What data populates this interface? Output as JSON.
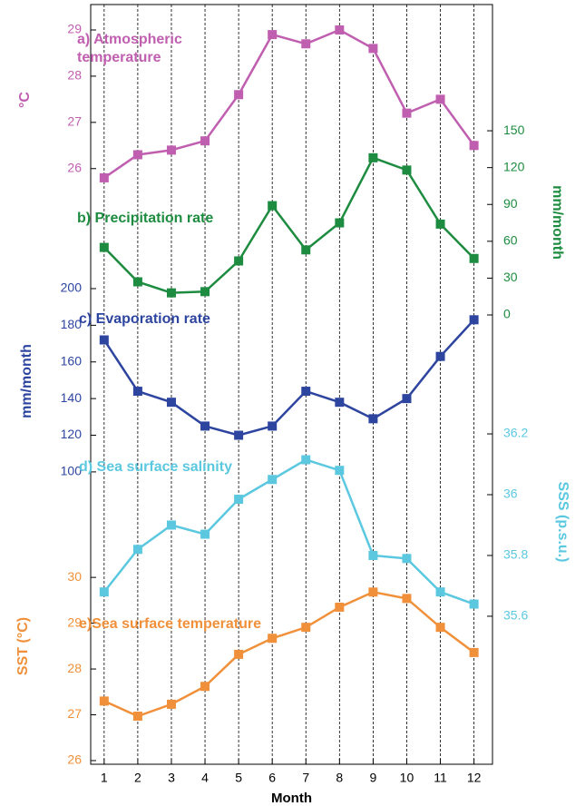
{
  "chart_data": [
    {
      "type": "line",
      "title": "a)  Atmospheric temperature",
      "ylabel": "°C",
      "axis": "y",
      "color": "#c05fb0",
      "x": [
        1,
        2,
        3,
        4,
        5,
        6,
        7,
        8,
        9,
        10,
        11,
        12
      ],
      "values": [
        25.8,
        26.3,
        26.4,
        26.6,
        27.6,
        28.9,
        28.7,
        29.0,
        28.6,
        27.2,
        27.5,
        26.5
      ],
      "ylim": [
        25.72,
        29.55
      ],
      "yticks": [
        26,
        27,
        28,
        29
      ]
    },
    {
      "type": "line",
      "title": "b) Precipitation rate",
      "ylabel": "mm/month",
      "axis": "y2",
      "color": "#1e8c40",
      "x": [
        1,
        2,
        3,
        4,
        5,
        6,
        7,
        8,
        9,
        10,
        11,
        12
      ],
      "values": [
        55,
        27,
        18,
        19,
        44,
        89,
        53,
        75,
        128,
        118,
        74,
        46
      ],
      "ylim": [
        -9.6,
        160.4
      ],
      "yticks": [
        0,
        30,
        60,
        90,
        120,
        150
      ]
    },
    {
      "type": "line",
      "title": "c) Evaporation rate",
      "ylabel": "mm/month",
      "axis": "y",
      "color": "#2e45a0",
      "x": [
        1,
        2,
        3,
        4,
        5,
        6,
        7,
        8,
        9,
        10,
        11,
        12
      ],
      "values": [
        172,
        144,
        138,
        125,
        120,
        125,
        144,
        138,
        129,
        140,
        163,
        183
      ],
      "ylim": [
        95.0,
        208.9
      ],
      "yticks": [
        100,
        120,
        140,
        160,
        180,
        200
      ]
    },
    {
      "type": "line",
      "title": "d) Sea surface salinity",
      "ylabel": "SSS (p.s.u.)",
      "axis": "y2",
      "color": "#5bc8e0",
      "x": [
        1,
        2,
        3,
        4,
        5,
        6,
        7,
        8,
        9,
        10,
        11,
        12
      ],
      "values": [
        35.68,
        35.82,
        35.9,
        35.87,
        35.985,
        36.05,
        36.115,
        36.08,
        35.8,
        35.79,
        35.68,
        35.64
      ],
      "ylim": [
        35.567,
        36.224
      ],
      "yticks": [
        35.6,
        35.8,
        36,
        36.2
      ]
    },
    {
      "type": "line",
      "title": "e)Sea surface temperature",
      "ylabel": "SST (°C)",
      "axis": "y",
      "color": "#f0903a",
      "x": [
        1,
        2,
        3,
        4,
        5,
        6,
        7,
        8,
        9,
        10,
        11,
        12
      ],
      "values": [
        27.3,
        26.97,
        27.23,
        27.62,
        28.32,
        28.67,
        28.91,
        29.35,
        29.68,
        29.54,
        28.91,
        28.36
      ],
      "ylim": [
        25.92,
        30.32
      ],
      "yticks": [
        26,
        27,
        28,
        29,
        30
      ],
      "xlabel": "Month",
      "xlim": [
        0.6,
        12.55
      ],
      "xticks": [
        1,
        2,
        3,
        4,
        5,
        6,
        7,
        8,
        9,
        10,
        11,
        12
      ]
    }
  ]
}
